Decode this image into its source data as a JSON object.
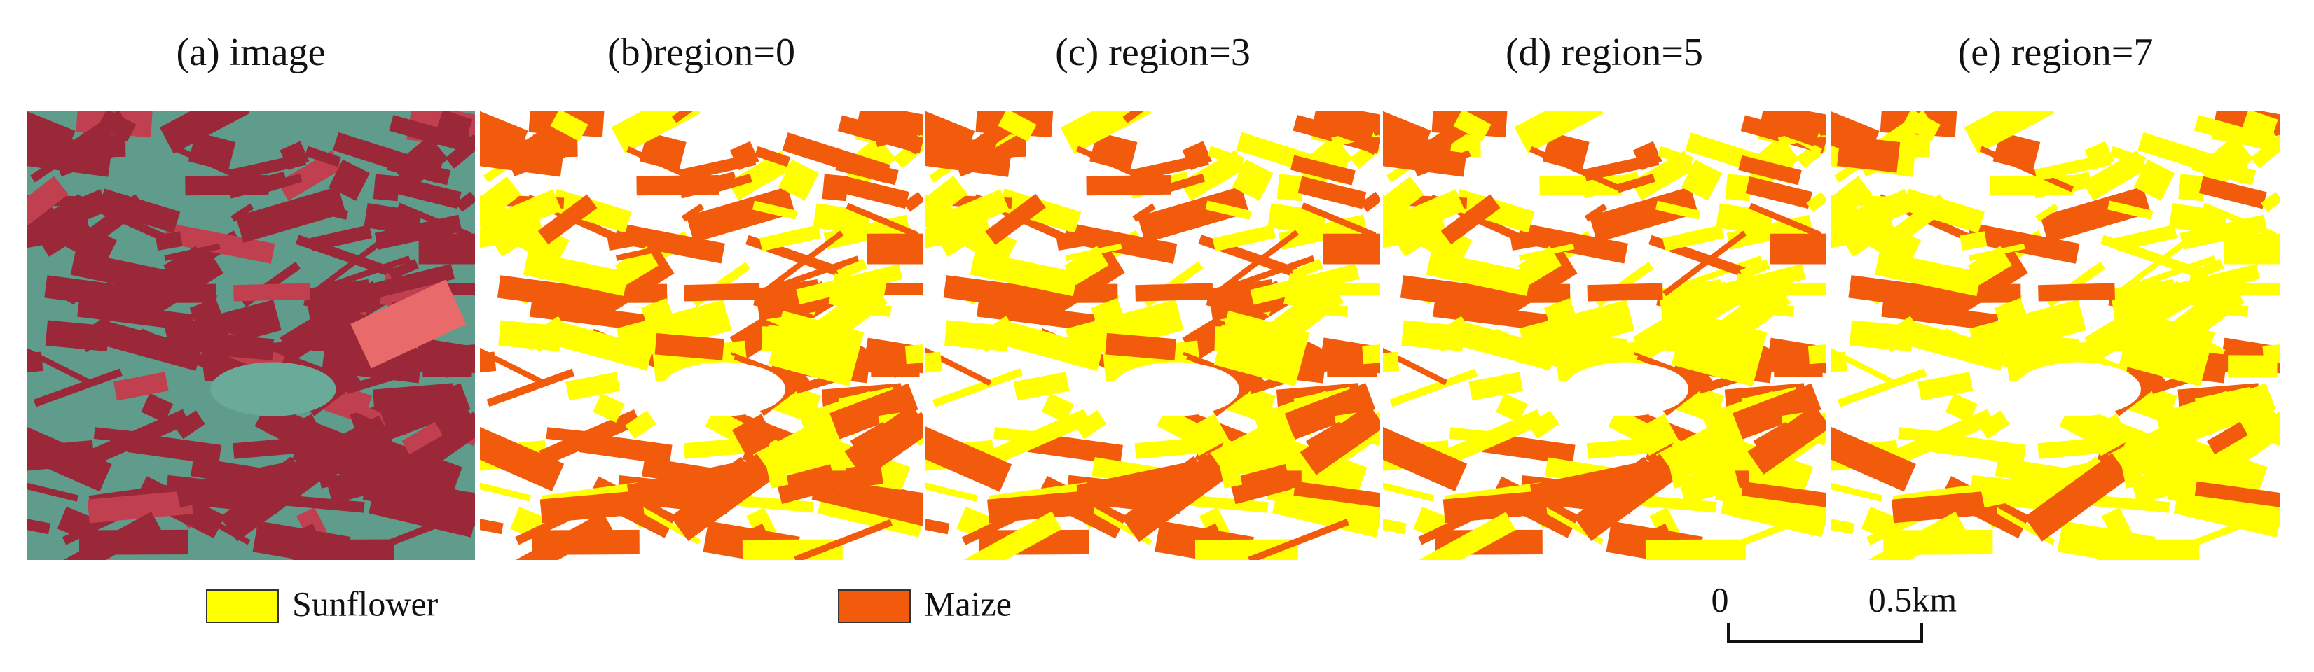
{
  "panels": [
    {
      "title": "(a) image"
    },
    {
      "title": "(b)region=0"
    },
    {
      "title": "(c) region=3"
    },
    {
      "title": "(d) region=5"
    },
    {
      "title": "(e) region=7"
    }
  ],
  "legend": [
    {
      "label": "Sunflower",
      "color": "#ffff00"
    },
    {
      "label": "Maize",
      "color": "#f25a0c"
    }
  ],
  "scale_bar": {
    "start": "0",
    "end": "0.5km"
  }
}
